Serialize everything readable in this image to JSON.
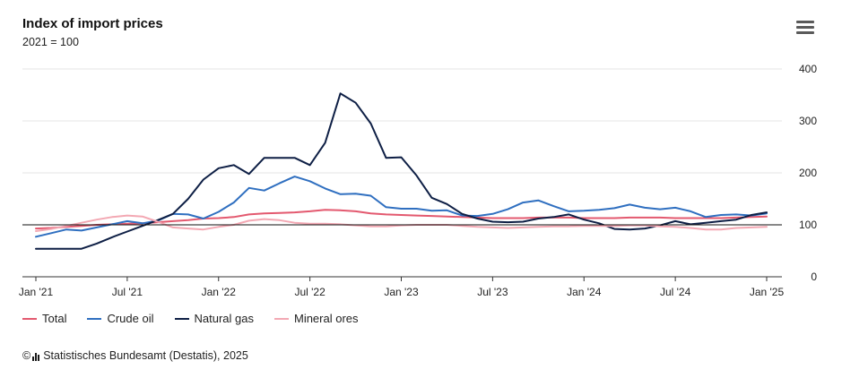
{
  "header": {
    "title": "Index of import prices",
    "subtitle": "2021 = 100",
    "menu_icon": "hamburger-menu-icon"
  },
  "source": {
    "copyright": "©",
    "text": "Statistisches Bundesamt (Destatis), 2025",
    "logo_icon": "destatis-logo-icon"
  },
  "chart_data": {
    "type": "line",
    "title": "Index of import prices",
    "subtitle": "2021 = 100",
    "xlabel": "",
    "ylabel": "",
    "x_tick_labels": [
      "Jan '21",
      "Jul '21",
      "Jan '22",
      "Jul '22",
      "Jan '23",
      "Jul '23",
      "Jan '24",
      "Jul '24",
      "Jan '25"
    ],
    "y_ticks": [
      0,
      100,
      200,
      300,
      400
    ],
    "ylim": [
      0,
      400
    ],
    "reference_line": 100,
    "grid": true,
    "legend_position": "bottom",
    "x": [
      "2021-01",
      "2021-02",
      "2021-03",
      "2021-04",
      "2021-05",
      "2021-06",
      "2021-07",
      "2021-08",
      "2021-09",
      "2021-10",
      "2021-11",
      "2021-12",
      "2022-01",
      "2022-02",
      "2022-03",
      "2022-04",
      "2022-05",
      "2022-06",
      "2022-07",
      "2022-08",
      "2022-09",
      "2022-10",
      "2022-11",
      "2022-12",
      "2023-01",
      "2023-02",
      "2023-03",
      "2023-04",
      "2023-05",
      "2023-06",
      "2023-07",
      "2023-08",
      "2023-09",
      "2023-10",
      "2023-11",
      "2023-12",
      "2024-01",
      "2024-02",
      "2024-03",
      "2024-04",
      "2024-05",
      "2024-06",
      "2024-07",
      "2024-08",
      "2024-09",
      "2024-10",
      "2024-11",
      "2024-12",
      "2025-01"
    ],
    "series": [
      {
        "name": "Total",
        "color": "#e3596f",
        "values": [
          93,
          94,
          96,
          98,
          100,
          101,
          102,
          103,
          105,
          107,
          109,
          112,
          113,
          115,
          120,
          122,
          123,
          124,
          126,
          129,
          128,
          126,
          122,
          120,
          119,
          118,
          117,
          116,
          115,
          114,
          113,
          113,
          113,
          114,
          114,
          114,
          113,
          113,
          113,
          114,
          114,
          114,
          113,
          113,
          113,
          113,
          114,
          115,
          116
        ]
      },
      {
        "name": "Crude oil",
        "color": "#2f6fc0",
        "values": [
          77,
          84,
          91,
          89,
          95,
          101,
          107,
          103,
          108,
          121,
          120,
          112,
          125,
          143,
          171,
          166,
          180,
          193,
          184,
          170,
          159,
          160,
          156,
          134,
          131,
          131,
          127,
          128,
          118,
          117,
          121,
          130,
          143,
          147,
          136,
          126,
          127,
          129,
          132,
          139,
          133,
          130,
          133,
          126,
          115,
          119,
          120,
          118,
          122
        ]
      },
      {
        "name": "Natural gas",
        "color": "#0e1f45",
        "values": [
          54,
          54,
          54,
          54,
          64,
          76,
          87,
          98,
          109,
          121,
          150,
          187,
          209,
          215,
          198,
          229,
          229,
          229,
          215,
          258,
          353,
          335,
          295,
          229,
          230,
          195,
          152,
          140,
          121,
          112,
          106,
          105,
          106,
          112,
          115,
          120,
          110,
          103,
          92,
          91,
          93,
          99,
          107,
          101,
          104,
          107,
          110,
          119,
          124
        ]
      },
      {
        "name": "Mineral ores",
        "color": "#f3a8b3",
        "values": [
          88,
          92,
          98,
          104,
          110,
          115,
          118,
          116,
          106,
          95,
          93,
          91,
          96,
          100,
          108,
          111,
          109,
          104,
          102,
          102,
          101,
          99,
          97,
          97,
          99,
          100,
          100,
          100,
          98,
          96,
          95,
          94,
          95,
          96,
          97,
          97,
          98,
          98,
          98,
          99,
          99,
          97,
          96,
          94,
          91,
          91,
          94,
          95,
          96
        ]
      }
    ]
  }
}
